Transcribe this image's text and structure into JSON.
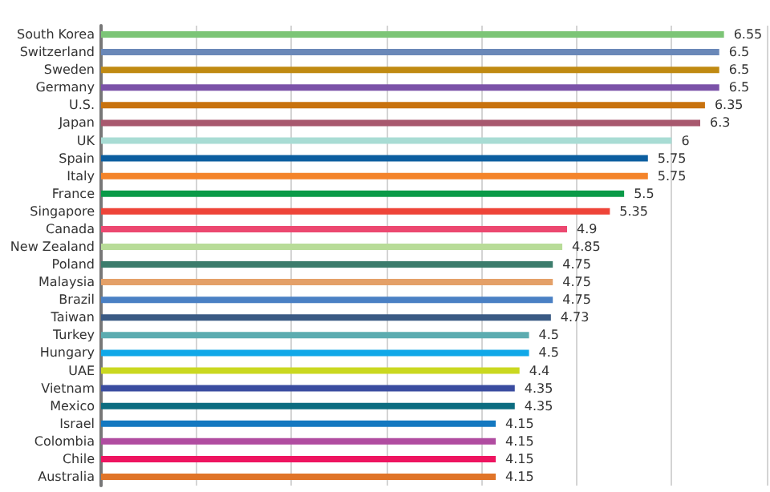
{
  "chart_data": {
    "type": "bar",
    "orientation": "horizontal",
    "categories": [
      "South Korea",
      "Switzerland",
      "Sweden",
      "Germany",
      "U.S.",
      "Japan",
      "UK",
      "Spain",
      "Italy",
      "France",
      "Singapore",
      "Canada",
      "New Zealand",
      "Poland",
      "Malaysia",
      "Brazil",
      "Taiwan",
      "Turkey",
      "Hungary",
      "UAE",
      "Vietnam",
      "Mexico",
      "Israel",
      "Colombia",
      "Chile",
      "Australia"
    ],
    "values": [
      6.55,
      6.5,
      6.5,
      6.5,
      6.35,
      6.3,
      6,
      5.75,
      5.75,
      5.5,
      5.35,
      4.9,
      4.85,
      4.75,
      4.75,
      4.75,
      4.73,
      4.5,
      4.5,
      4.4,
      4.35,
      4.35,
      4.15,
      4.15,
      4.15,
      4.15
    ],
    "colors": [
      "#7cc576",
      "#6a88b8",
      "#c08a12",
      "#7b52a8",
      "#c8720e",
      "#a8586e",
      "#a8dcd4",
      "#0c5ea0",
      "#f4842a",
      "#0a9a48",
      "#ee4438",
      "#ec4870",
      "#b8dc98",
      "#3c7c6c",
      "#e4a068",
      "#4a80c4",
      "#3a5a84",
      "#5cacb0",
      "#10a8e8",
      "#cad820",
      "#3a4ca0",
      "#0c6c80",
      "#1478c0",
      "#b04ca0",
      "#ee1460",
      "#e07428"
    ],
    "xlim": [
      0,
      7
    ],
    "xticks": [
      {
        "value": 0,
        "label": null
      },
      {
        "value": 1,
        "label": null
      },
      {
        "value": 2,
        "label": null
      },
      {
        "value": 3,
        "label": null
      },
      {
        "value": 4,
        "label": null
      },
      {
        "value": 5,
        "label": null
      },
      {
        "value": 6,
        "label": null
      },
      {
        "value": 7,
        "label": null
      }
    ],
    "tick_labels": "y",
    "grid": "x",
    "data_labels": true
  }
}
